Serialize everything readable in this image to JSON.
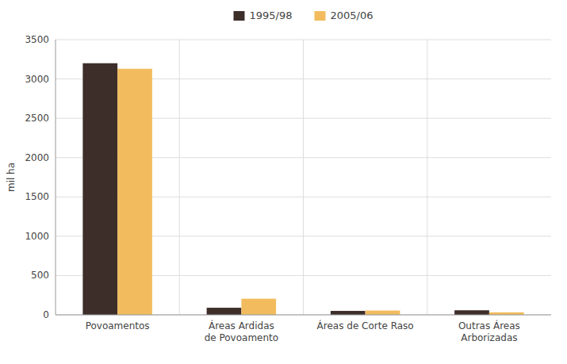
{
  "chart_data": {
    "type": "bar",
    "categories": [
      "Povoamentos",
      "Áreas Ardidas\nde Povoamento",
      "Áreas de Corte Raso",
      "Outras Áreas\nArborizadas"
    ],
    "series": [
      {
        "name": "1995/98",
        "color": "#3d2e2a",
        "values": [
          3200,
          90,
          50,
          58
        ]
      },
      {
        "name": "2005/06",
        "color": "#f2bc5e",
        "values": [
          3130,
          205,
          55,
          32
        ]
      }
    ],
    "ylabel": "mil ha",
    "ylim": [
      0,
      3500
    ],
    "yticks": [
      0,
      500,
      1000,
      1500,
      2000,
      2500,
      3000,
      3500
    ],
    "grid": true,
    "legend": "top"
  }
}
